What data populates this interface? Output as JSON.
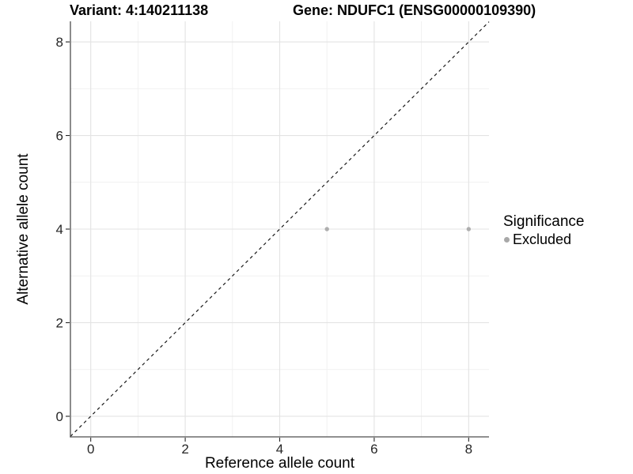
{
  "header": {
    "variant_title": "Variant: 4:140211138",
    "gene_title": "Gene: NDUFC1 (ENSG00000109390)"
  },
  "chart_data": {
    "type": "scatter",
    "xlabel": "Reference allele count",
    "ylabel": "Alternative allele count",
    "xlim": [
      -0.43,
      8.43
    ],
    "ylim": [
      -0.44,
      8.44
    ],
    "x_ticks": [
      0,
      2,
      4,
      6,
      8
    ],
    "y_ticks": [
      0,
      2,
      4,
      6,
      8
    ],
    "grid": "major gridlines at even ticks, minor at odd, light gray on white",
    "series": [
      {
        "name": "Excluded",
        "color": "#aeaeae",
        "marker": "circle",
        "points": [
          {
            "x": 5,
            "y": 4
          },
          {
            "x": 8,
            "y": 4
          }
        ]
      }
    ],
    "reference_line": {
      "equation": "y = x",
      "style": "dashed",
      "color": "#1a1a1a"
    },
    "legend": {
      "position": "right",
      "title": "Significance",
      "entries": [
        {
          "label": "Excluded",
          "color": "#a8a8a8"
        }
      ]
    },
    "style": {
      "major_grid": "#e3e3e3",
      "minor_grid": "#f1f1f1",
      "axis_line": "#4d4d4d",
      "tick_color": "#262626",
      "text_color": "#000000"
    }
  }
}
